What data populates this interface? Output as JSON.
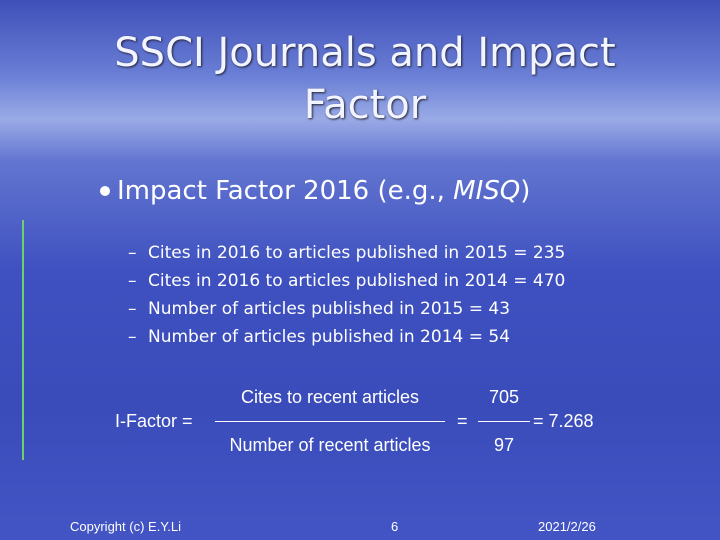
{
  "slide": {
    "title": [
      "SSCI Journals and Impact",
      "Factor"
    ],
    "bullet": {
      "parts": [
        "Impact Factor 2016 (e.g., ",
        "MISQ",
        ")"
      ]
    },
    "sub_marker": "–",
    "sub_bullets": [
      "Cites in 2016 to articles published in 2015 = 235",
      "Cites in 2016 to articles published in 2014 = 470",
      "Number of articles published in 2015 = 43",
      "Number of articles published in 2014 = 54"
    ],
    "formula": {
      "lhs": "I-Factor =",
      "numerator": "Cites to recent articles",
      "denominator": "Number of recent articles",
      "equals": "=",
      "num_value": "705",
      "den_value": "97",
      "result": "= 7.268"
    },
    "footer": {
      "left": "Copyright (c) E.Y.Li",
      "center": "6",
      "right": "2021/2/26"
    }
  }
}
